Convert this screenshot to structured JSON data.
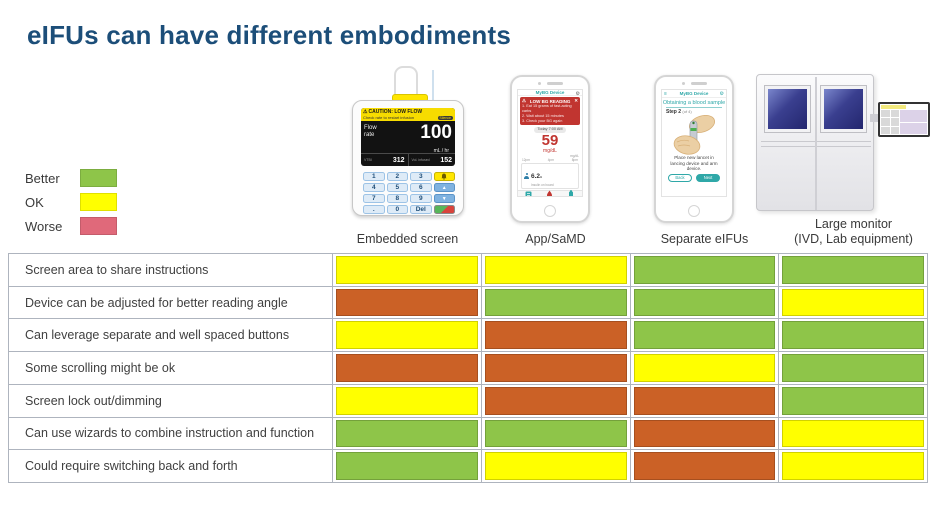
{
  "title": "eIFUs can have different embodiments",
  "colors": {
    "title": "#1C4E79",
    "better": "#8EC549",
    "ok": "#FFFF00",
    "worse": "#CB6126",
    "worse_legend": "#E0697A",
    "table_border": "#AEB4BE",
    "teal": "#2FA8A8",
    "alert_red": "#C13530"
  },
  "legend": {
    "items": [
      {
        "label": "Better",
        "rating": "better"
      },
      {
        "label": "OK",
        "rating": "ok"
      },
      {
        "label": "Worse",
        "rating": "worse"
      }
    ]
  },
  "devices": {
    "pump": {
      "caption": "Embedded screen",
      "caution_icon": "⚠",
      "caution_line1": "CAUTION: LOW FLOW",
      "caution_line2": "Check rate to restart infusion",
      "caution_badge": "Silence",
      "flow_label_1": "Flow",
      "flow_label_2": "rate",
      "flow_value": "100",
      "flow_unit": "mL / hr",
      "stat1_label": "VTBI",
      "stat1_value": "312",
      "stat2_label": "Vol. infused",
      "stat2_value": "152",
      "keys": [
        [
          "1",
          "2",
          "3"
        ],
        [
          "4",
          "5",
          "6"
        ],
        [
          "7",
          "8",
          "9"
        ],
        [
          ".",
          "0",
          "Del"
        ]
      ],
      "up_glyph": "▲",
      "down_glyph": "▼"
    },
    "app": {
      "caption": "App/SaMD",
      "header": "MyBG Device",
      "gear_glyph": "⚙",
      "alert_icon": "⚠",
      "alert_title": "LOW BG READING",
      "alert_close": "✕",
      "alert_steps": [
        "1. Eat 15 grams of fast-acting carbs",
        "2. Wait about 15 minutes",
        "3. Check your BG again"
      ],
      "time_label": "Today 7:00 AM",
      "reading": "59",
      "reading_unit": "mg/dL",
      "chart_unit": "mg/dL",
      "chart_axis": [
        "12pm",
        "4pm",
        "8pm"
      ],
      "insulin_value": "6.2",
      "insulin_unit": "u",
      "insulin_label": "Insulin on board"
    },
    "eifu": {
      "caption": "Separate eIFUs",
      "menu_glyph": "≡",
      "header": "MyBG Device",
      "gear_glyph": "⚙",
      "screen_title": "Obtaining a blood sample",
      "step": "Step 2",
      "step_suffix": "(of 4)",
      "instruction": "Place new lancet in lancing device and arm device.",
      "back_label": "Back",
      "next_label": "Next"
    },
    "monitor": {
      "caption_line1": "Large monitor",
      "caption_line2": "(IVD, Lab equipment)"
    }
  },
  "table": {
    "rows": [
      {
        "label": "Screen area to share instructions",
        "cells": [
          "ok",
          "ok",
          "better",
          "better"
        ]
      },
      {
        "label": "Device can be adjusted for better reading angle",
        "cells": [
          "worse",
          "better",
          "better",
          "ok"
        ]
      },
      {
        "label": "Can leverage separate and well spaced buttons",
        "cells": [
          "ok",
          "worse",
          "better",
          "better"
        ]
      },
      {
        "label": "Some scrolling might be ok",
        "cells": [
          "worse",
          "worse",
          "ok",
          "better"
        ]
      },
      {
        "label": "Screen lock out/dimming",
        "cells": [
          "ok",
          "worse",
          "worse",
          "better"
        ]
      },
      {
        "label": "Can use wizards to combine instruction and function",
        "cells": [
          "better",
          "better",
          "worse",
          "ok"
        ]
      },
      {
        "label": "Could require switching back and forth",
        "cells": [
          "better",
          "ok",
          "worse",
          "ok"
        ]
      }
    ]
  }
}
